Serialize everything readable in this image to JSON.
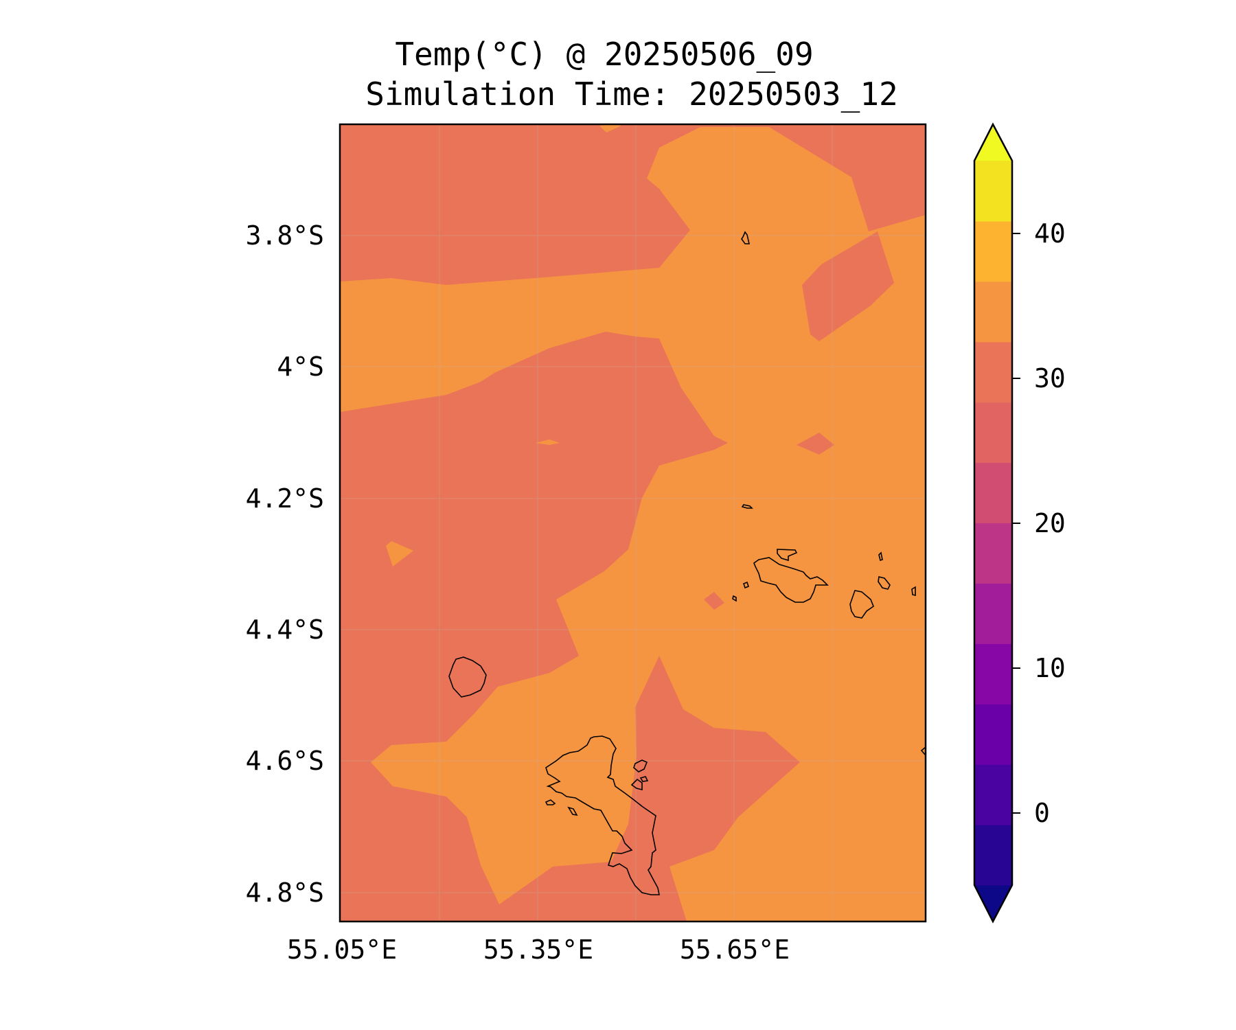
{
  "title": "Temp(°C) @ 20250506_09",
  "subtitle": "Simulation Time: 20250503_12",
  "map": {
    "x_ticks": [
      "55.05°E",
      "55.35°E",
      "55.65°E"
    ],
    "y_ticks": [
      "3.8°S",
      "4°S",
      "4.2°S",
      "4.4°S",
      "4.6°S",
      "4.8°S"
    ],
    "colors": {
      "band_25_30": "#ea7457",
      "band_30_35": "#f69541"
    }
  },
  "colorbar": {
    "ticks": [
      "0",
      "10",
      "20",
      "30",
      "40"
    ],
    "levels": [
      -5,
      0,
      5,
      10,
      15,
      20,
      25,
      30,
      35,
      40,
      45
    ],
    "colors": [
      "#0d0887",
      "#280592",
      "#4a02a0",
      "#6a00a8",
      "#8707a6",
      "#a21d9a",
      "#bc3587",
      "#d14e72",
      "#e16462",
      "#ea7457",
      "#f69541",
      "#fdb32f",
      "#f2e21f",
      "#f0f921"
    ]
  }
}
